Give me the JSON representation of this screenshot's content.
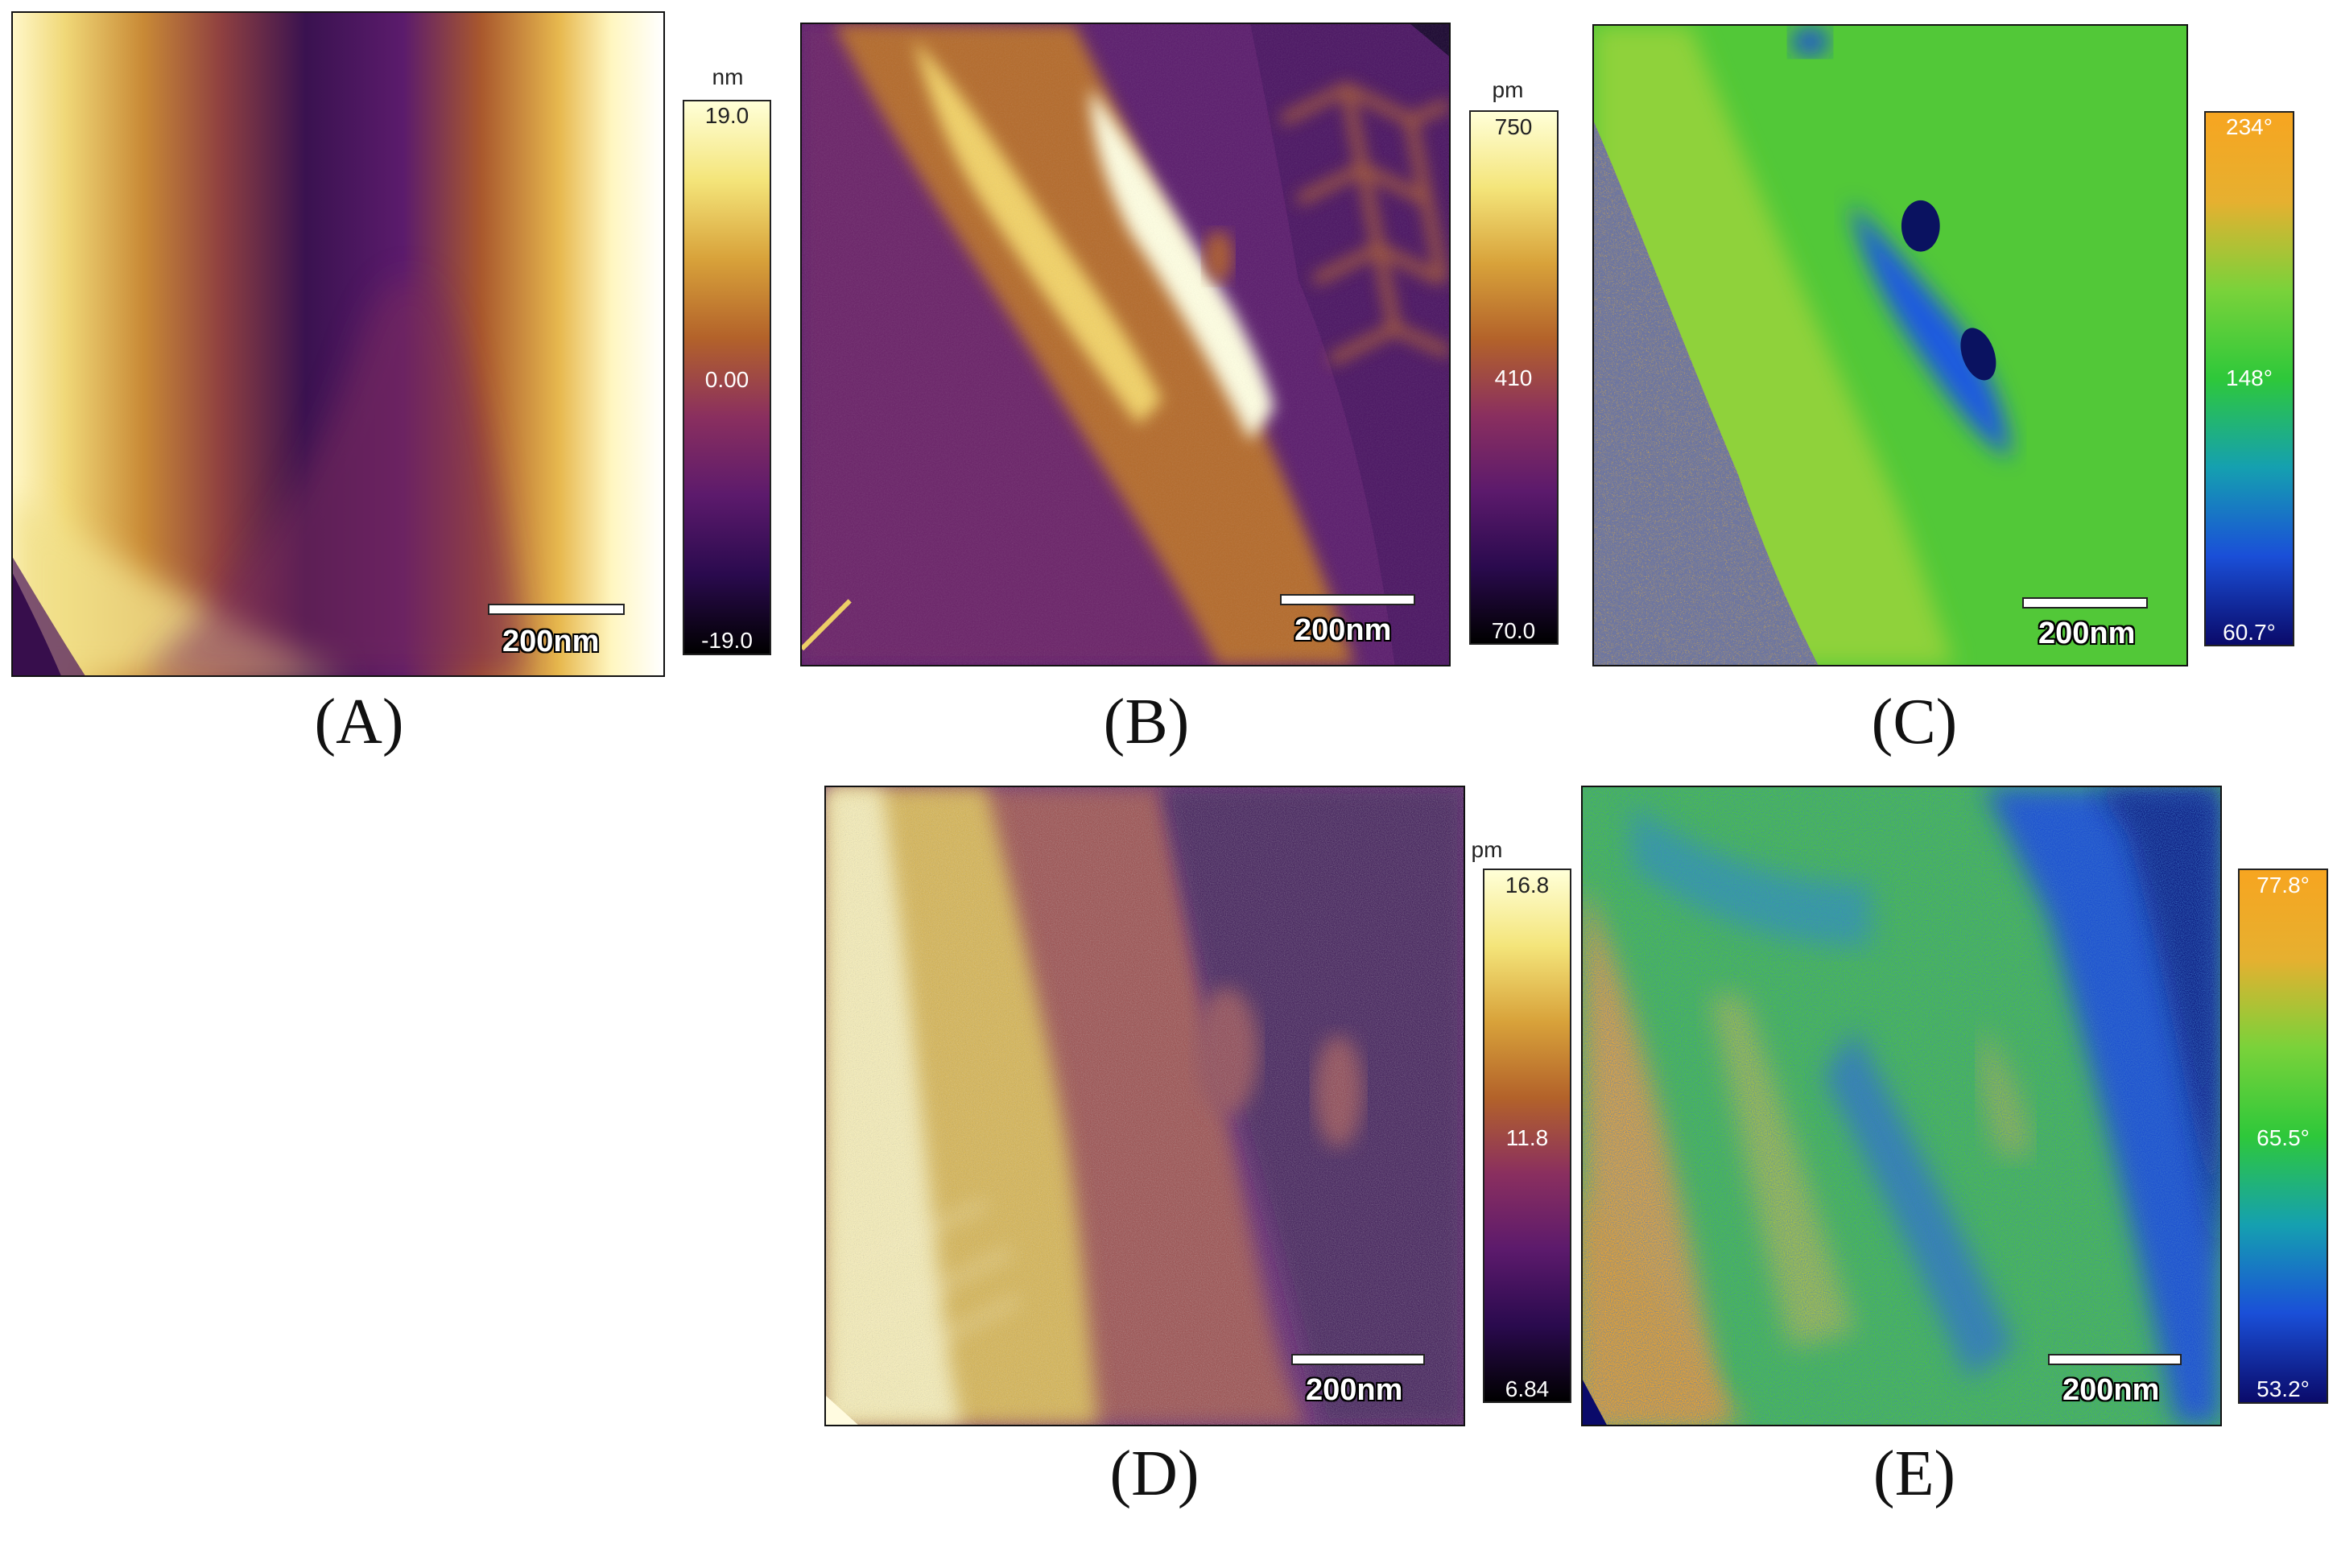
{
  "panels": {
    "a": {
      "label": "(A)",
      "scale_label": "200nm",
      "colorbar": {
        "unit": "nm",
        "max": "19.0",
        "mid": "0.00",
        "min": "-19.0",
        "colors": [
          "#000000",
          "#2a0a4e",
          "#5c1a6c",
          "#8a2f5f",
          "#b3622a",
          "#d8a23a",
          "#f4e57a",
          "#ffffd8"
        ]
      }
    },
    "b": {
      "label": "(B)",
      "scale_label": "200nm",
      "colorbar": {
        "unit": "pm",
        "max": "750",
        "mid": "410",
        "min": "70.0",
        "colors": [
          "#000000",
          "#2a0a4e",
          "#5c1a6c",
          "#8a2f5f",
          "#b3622a",
          "#d8a23a",
          "#f4e57a",
          "#ffffd8"
        ]
      }
    },
    "c": {
      "label": "(C)",
      "scale_label": "200nm",
      "colorbar": {
        "unit": "",
        "max": "234°",
        "mid": "148°",
        "min": "60.7°",
        "colors": [
          "#0a0a6a",
          "#1a4fd8",
          "#15a0b0",
          "#2ec83a",
          "#7ad23a",
          "#e6b030",
          "#f7a520"
        ]
      }
    },
    "d": {
      "label": "(D)",
      "scale_label": "200nm",
      "colorbar": {
        "unit": "pm",
        "max": "16.8",
        "mid": "11.8",
        "min": "6.84",
        "colors": [
          "#000000",
          "#2a0a4e",
          "#5c1a6c",
          "#8a2f5f",
          "#b3622a",
          "#d8a23a",
          "#f4e57a",
          "#ffffd8"
        ]
      }
    },
    "e": {
      "label": "(E)",
      "scale_label": "200nm",
      "colorbar": {
        "unit": "",
        "max": "77.8°",
        "mid": "65.5°",
        "min": "53.2°",
        "colors": [
          "#0a0a6a",
          "#1a4fd8",
          "#15a0b0",
          "#2ec83a",
          "#7ad23a",
          "#e6b030",
          "#f7a520"
        ]
      }
    }
  }
}
